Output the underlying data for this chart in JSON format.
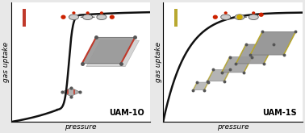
{
  "bg_color": "#e8e8e8",
  "panel_bg": "#ffffff",
  "left_label": "UAM-1O",
  "right_label": "UAM-1S",
  "ylabel": "gas uptake",
  "xlabel": "pressure",
  "curve_color": "#111111",
  "bar_color_left": "#c0392b",
  "bar_color_right": "#b8a830",
  "frame_color_left": "#c0392b",
  "frame_color_right": "#b8a830",
  "frame_fill": "#888888",
  "mol_atom_color": "#888888",
  "mol_bond_color": "#555555",
  "mol_o_color": "#cc2200",
  "mol_s_color": "#ccaa00",
  "title_fontsize": 7,
  "label_fontsize": 6,
  "axis_label_fontsize": 6.5
}
